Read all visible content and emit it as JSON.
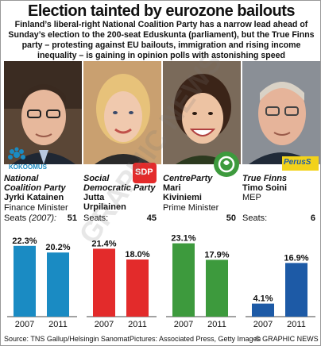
{
  "title": "Election tainted by eurozone bailouts",
  "intro": "Finland’s liberal-right National Coalition Party has a narrow lead ahead of Sunday’s election to the 200-seat Eduskunta (parliament), but the True Finns party – protesting against EU bailouts, immigration and rising income inequality – is gaining in opinion polls with astonishing speed",
  "parties": [
    {
      "party_line1": "National",
      "party_line2": "Coalition Party",
      "leader": "Jyrki Katainen",
      "role": "Finance Minister",
      "seats_label": "Seats",
      "seats_year": "(2007):",
      "seats": "51",
      "logo_text": "KOKOOMUS",
      "color": "#1a8bc3"
    },
    {
      "party_line1": "Social",
      "party_line2": "Democratic Party",
      "leader": "Jutta Urpilainen",
      "role": "",
      "seats_label": "Seats:",
      "seats_year": "",
      "seats": "45",
      "logo_text": "SDP",
      "color": "#e32b2b"
    },
    {
      "party_line1": "CentreParty",
      "party_line2": "",
      "leader_line1": "Mari",
      "leader": "Kiviniemi",
      "role": "Prime Minister",
      "seats_label": "",
      "seats_year": "",
      "seats": "50",
      "logo_text": "",
      "color": "#3d9a3d"
    },
    {
      "party_line1": "True Finns",
      "party_line2": "",
      "leader": "Timo Soini",
      "role": "MEP",
      "seats_label": "Seats:",
      "seats_year": "",
      "seats": "6",
      "logo_text": "PerusS",
      "color": "#1d5aa6"
    }
  ],
  "footer": {
    "source": "Source: TNS Gallup/Helsingin Sanomat",
    "pictures": "Pictures: Associated Press, Getty Images",
    "credit": "© GRAPHIC NEWS"
  },
  "watermark": "GRAPHIC NEWS",
  "chart_data": {
    "type": "bar",
    "categories": [
      "2007",
      "2011"
    ],
    "ylim": [
      0,
      25
    ],
    "series": [
      {
        "name": "National Coalition Party",
        "values": [
          22.3,
          20.2
        ],
        "labels": [
          "22.3%",
          "20.2%"
        ],
        "color": "#1a8bc3"
      },
      {
        "name": "Social Democratic Party",
        "values": [
          21.4,
          18.0
        ],
        "labels": [
          "21.4%",
          "18.0%"
        ],
        "color": "#e32b2b"
      },
      {
        "name": "Centre Party",
        "values": [
          23.1,
          17.9
        ],
        "labels": [
          "23.1%",
          "17.9%"
        ],
        "color": "#3d9a3d"
      },
      {
        "name": "True Finns",
        "values": [
          4.1,
          16.9
        ],
        "labels": [
          "4.1%",
          "16.9%"
        ],
        "color": "#1d5aa6"
      }
    ]
  }
}
